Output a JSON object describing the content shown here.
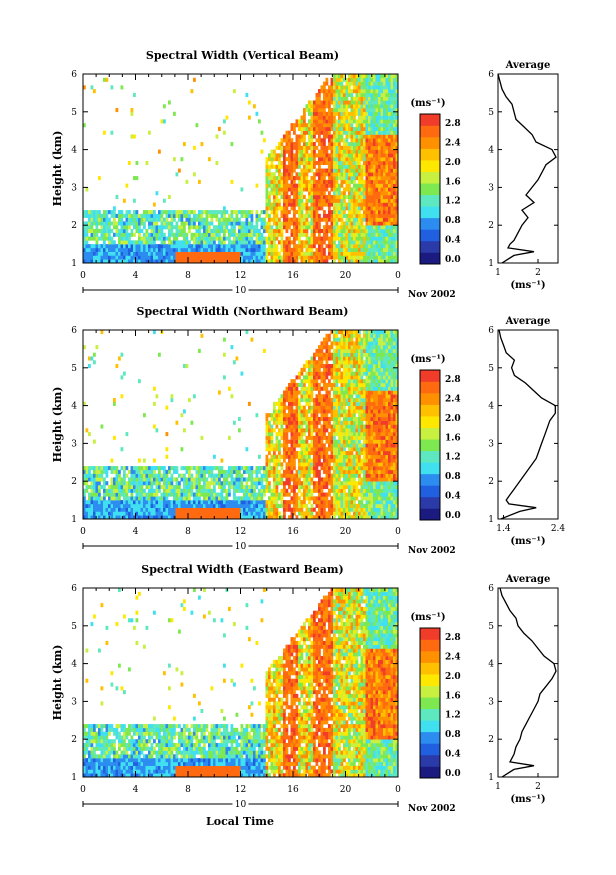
{
  "figure": {
    "xlabel": "Local Time",
    "date_label": "Nov 2002",
    "day_label": "10",
    "colorbar_unit": "(ms⁻¹)",
    "colors": {
      "red": "#f03c28",
      "orange": "#ff9000",
      "yellow": "#ffe800",
      "green": "#7ee850",
      "cyan": "#40e0f0",
      "blue": "#2060e0",
      "navy": "#1a1a80"
    }
  },
  "panels": [
    {
      "title": "Spectral Width (Vertical Beam)",
      "ylabel": "Height (km)",
      "colorbar_ticks": [
        "2.8",
        "2.4",
        "2.0",
        "1.6",
        "1.2",
        "0.8",
        "0.4",
        "0.0"
      ],
      "average_title": "Average",
      "average_xlabel": "(ms⁻¹)",
      "average_xticks": [
        "1",
        "2"
      ],
      "average_xlim": [
        1.0,
        2.5
      ]
    },
    {
      "title": "Spectral Width (Northward Beam)",
      "ylabel": "Height (km)",
      "colorbar_ticks": [
        "2.8",
        "2.4",
        "2.0",
        "1.6",
        "1.2",
        "0.8",
        "0.4",
        "0.0"
      ],
      "average_title": "Average",
      "average_xlabel": "(ms⁻¹)",
      "average_xticks": [
        "1.4",
        "2.4"
      ],
      "average_xlim": [
        1.3,
        2.4
      ]
    },
    {
      "title": "Spectral Width (Eastward Beam)",
      "ylabel": "Height (km)",
      "colorbar_ticks": [
        "2.8",
        "2.4",
        "2.0",
        "1.6",
        "1.2",
        "0.8",
        "0.4",
        "0.0"
      ],
      "average_title": "Average",
      "average_xlabel": "(ms⁻¹)",
      "average_xticks": [
        "1",
        "2"
      ],
      "average_xlim": [
        1.0,
        2.5
      ]
    }
  ],
  "chart_data": [
    {
      "type": "heatmap",
      "title": "Spectral Width (Vertical Beam)",
      "xlabel": "Local Time",
      "ylabel": "Height (km)",
      "xlim": [
        0,
        24
      ],
      "ylim": [
        1,
        6
      ],
      "x_ticks": [
        "0",
        "4",
        "8",
        "12",
        "16",
        "20",
        "0"
      ],
      "y_ticks": [
        "1",
        "2",
        "3",
        "4",
        "5",
        "6"
      ],
      "colorbar_unit": "(ms⁻¹)",
      "colorbar_range": [
        0.0,
        3.0
      ],
      "profile": {
        "type": "line",
        "title": "Average",
        "xlabel": "(ms⁻¹)",
        "xlim": [
          1.0,
          2.5
        ],
        "x_ticks": [
          "1",
          "2"
        ],
        "ylim": [
          1,
          6
        ],
        "y_ticks": [
          "1",
          "2",
          "3",
          "4",
          "5",
          "6"
        ],
        "y": [
          1.0,
          1.2,
          1.3,
          1.4,
          1.5,
          1.6,
          1.8,
          2.0,
          2.2,
          2.4,
          2.6,
          2.8,
          3.0,
          3.2,
          3.4,
          3.6,
          3.8,
          4.0,
          4.2,
          4.4,
          4.6,
          4.8,
          5.0,
          5.2,
          5.4,
          5.6,
          5.8,
          6.0
        ],
        "x": [
          1.1,
          1.4,
          1.9,
          1.25,
          1.3,
          1.4,
          1.5,
          1.6,
          1.75,
          1.6,
          1.9,
          1.7,
          1.85,
          2.0,
          2.1,
          2.2,
          2.45,
          2.35,
          1.95,
          1.85,
          1.65,
          1.45,
          1.4,
          1.35,
          1.2,
          1.1,
          1.05,
          1.0
        ]
      }
    },
    {
      "type": "heatmap",
      "title": "Spectral Width (Northward Beam)",
      "xlabel": "Local Time",
      "ylabel": "Height (km)",
      "xlim": [
        0,
        24
      ],
      "ylim": [
        1,
        6
      ],
      "x_ticks": [
        "0",
        "4",
        "8",
        "12",
        "16",
        "20",
        "0"
      ],
      "y_ticks": [
        "1",
        "2",
        "3",
        "4",
        "5",
        "6"
      ],
      "colorbar_unit": "(ms⁻¹)",
      "colorbar_range": [
        0.0,
        3.0
      ],
      "profile": {
        "type": "line",
        "title": "Average",
        "xlabel": "(ms⁻¹)",
        "xlim": [
          1.3,
          2.4
        ],
        "x_ticks": [
          "1.4",
          "2.4"
        ],
        "ylim": [
          1,
          6
        ],
        "y_ticks": [
          "1",
          "2",
          "3",
          "4",
          "5",
          "6"
        ],
        "y": [
          1.0,
          1.2,
          1.3,
          1.4,
          1.5,
          1.6,
          1.8,
          2.0,
          2.2,
          2.4,
          2.6,
          2.8,
          3.0,
          3.2,
          3.4,
          3.6,
          3.8,
          4.0,
          4.2,
          4.4,
          4.6,
          4.8,
          5.0,
          5.2,
          5.4,
          5.6,
          5.8,
          6.0
        ],
        "x": [
          1.35,
          1.7,
          2.0,
          1.5,
          1.45,
          1.5,
          1.6,
          1.7,
          1.8,
          1.9,
          2.0,
          2.05,
          2.1,
          2.15,
          2.2,
          2.25,
          2.35,
          2.35,
          2.1,
          1.95,
          1.8,
          1.6,
          1.55,
          1.6,
          1.45,
          1.4,
          1.35,
          1.32
        ]
      }
    },
    {
      "type": "heatmap",
      "title": "Spectral Width (Eastward Beam)",
      "xlabel": "Local Time",
      "ylabel": "Height (km)",
      "xlim": [
        0,
        24
      ],
      "ylim": [
        1,
        6
      ],
      "x_ticks": [
        "0",
        "4",
        "8",
        "12",
        "16",
        "20",
        "0"
      ],
      "y_ticks": [
        "1",
        "2",
        "3",
        "4",
        "5",
        "6"
      ],
      "colorbar_unit": "(ms⁻¹)",
      "colorbar_range": [
        0.0,
        3.0
      ],
      "profile": {
        "type": "line",
        "title": "Average",
        "xlabel": "(ms⁻¹)",
        "xlim": [
          1.0,
          2.5
        ],
        "x_ticks": [
          "1",
          "2"
        ],
        "ylim": [
          1,
          6
        ],
        "y_ticks": [
          "1",
          "2",
          "3",
          "4",
          "5",
          "6"
        ],
        "y": [
          1.0,
          1.2,
          1.3,
          1.4,
          1.5,
          1.6,
          1.8,
          2.0,
          2.2,
          2.4,
          2.6,
          2.8,
          3.0,
          3.2,
          3.4,
          3.6,
          3.8,
          4.0,
          4.2,
          4.4,
          4.6,
          4.8,
          5.0,
          5.2,
          5.4,
          5.6,
          5.8,
          6.0
        ],
        "x": [
          1.1,
          1.4,
          1.9,
          1.3,
          1.35,
          1.4,
          1.45,
          1.55,
          1.6,
          1.7,
          1.8,
          1.9,
          2.0,
          2.05,
          2.2,
          2.35,
          2.45,
          2.4,
          2.15,
          2.0,
          1.85,
          1.65,
          1.5,
          1.45,
          1.3,
          1.2,
          1.1,
          1.05
        ]
      }
    }
  ]
}
